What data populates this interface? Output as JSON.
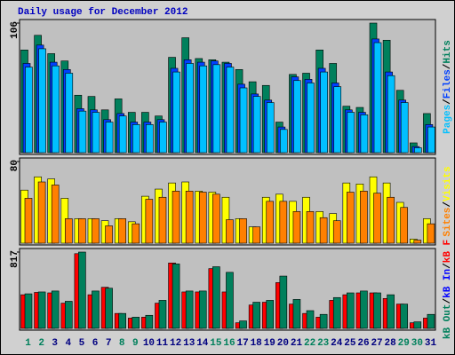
{
  "chart_data": [
    {
      "type": "bar",
      "title": "Daily usage for December 2012",
      "ylim": [
        0,
        106
      ],
      "yticks": [
        106
      ],
      "legend_separator": "/",
      "series": [
        {
          "name": "Hits",
          "color": "#00805c",
          "values": [
            84,
            96,
            81,
            75,
            47,
            46,
            35,
            44,
            33,
            33,
            30,
            78,
            94,
            77,
            76,
            74,
            68,
            58,
            55,
            25,
            64,
            65,
            84,
            73,
            38,
            37,
            106,
            92,
            51,
            8,
            32
          ]
        },
        {
          "name": "Files",
          "color": "#0040ff",
          "values": [
            73,
            88,
            74,
            68,
            36,
            35,
            27,
            32,
            25,
            25,
            27,
            69,
            76,
            74,
            75,
            73,
            56,
            48,
            43,
            21,
            62,
            60,
            69,
            57,
            35,
            33,
            93,
            66,
            43,
            5,
            23
          ]
        },
        {
          "name": "Pages",
          "color": "#00c0ff",
          "values": [
            70,
            85,
            71,
            65,
            34,
            33,
            25,
            30,
            23,
            23,
            25,
            66,
            73,
            71,
            72,
            70,
            53,
            46,
            41,
            19,
            59,
            57,
            66,
            54,
            33,
            31,
            90,
            63,
            41,
            4,
            21
          ]
        }
      ]
    },
    {
      "type": "bar",
      "ylim": [
        0,
        80
      ],
      "yticks": [
        80
      ],
      "legend_separator": "/",
      "series": [
        {
          "name": "Visits",
          "color": "#ffff00",
          "values": [
            52,
            65,
            63,
            44,
            24,
            24,
            22,
            24,
            21,
            46,
            53,
            59,
            60,
            51,
            50,
            45,
            24,
            16,
            45,
            48,
            41,
            45,
            31,
            29,
            59,
            58,
            65,
            59,
            40,
            4,
            24
          ]
        },
        {
          "name": "Sites",
          "color": "#ff8000",
          "values": [
            44,
            60,
            57,
            24,
            24,
            24,
            17,
            24,
            19,
            43,
            45,
            51,
            51,
            50,
            48,
            23,
            24,
            16,
            41,
            41,
            31,
            31,
            25,
            22,
            50,
            51,
            49,
            45,
            35,
            3,
            19
          ]
        }
      ]
    },
    {
      "type": "bar",
      "ylim": [
        0,
        817
      ],
      "yticks": [
        817
      ],
      "legend_separator": "/",
      "categories": [
        "1",
        "2",
        "3",
        "4",
        "5",
        "6",
        "7",
        "8",
        "9",
        "10",
        "11",
        "12",
        "13",
        "14",
        "15",
        "16",
        "17",
        "18",
        "19",
        "20",
        "21",
        "22",
        "23",
        "24",
        "25",
        "26",
        "27",
        "28",
        "29",
        "30",
        "31"
      ],
      "weekend_days": [
        0,
        1,
        7,
        8,
        14,
        15,
        21,
        22,
        28,
        29
      ],
      "weekend_color": "#00805c",
      "series": [
        {
          "name": "kB F",
          "color": "#ff0000",
          "values": [
            360,
            385,
            380,
            270,
            800,
            360,
            440,
            160,
            110,
            120,
            270,
            700,
            390,
            390,
            640,
            390,
            60,
            250,
            280,
            490,
            260,
            160,
            120,
            300,
            360,
            380,
            380,
            320,
            260,
            60,
            110
          ]
        },
        {
          "name": "kB In",
          "color": "#0000ff",
          "values": [
            null,
            null,
            null,
            null,
            null,
            null,
            null,
            null,
            null,
            null,
            null,
            null,
            null,
            null,
            null,
            null,
            null,
            null,
            null,
            null,
            null,
            null,
            null,
            null,
            null,
            null,
            null,
            null,
            null,
            null,
            null
          ]
        },
        {
          "name": "kB Out",
          "color": "#00805c",
          "values": [
            370,
            390,
            400,
            290,
            817,
            400,
            430,
            160,
            120,
            140,
            300,
            690,
            400,
            400,
            660,
            600,
            80,
            280,
            300,
            560,
            310,
            190,
            150,
            330,
            380,
            400,
            380,
            360,
            260,
            70,
            150
          ]
        }
      ]
    }
  ]
}
